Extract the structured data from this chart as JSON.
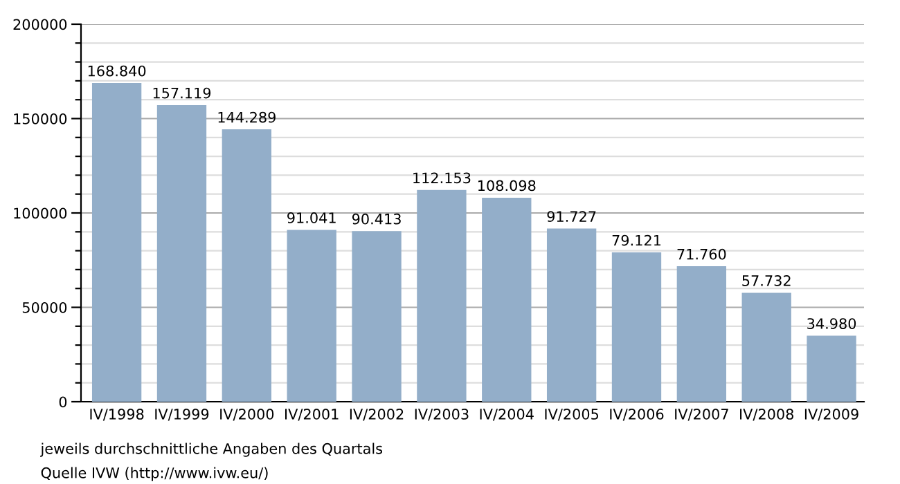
{
  "chart_data": {
    "type": "bar",
    "categories": [
      "IV/1998",
      "IV/1999",
      "IV/2000",
      "IV/2001",
      "IV/2002",
      "IV/2003",
      "IV/2004",
      "IV/2005",
      "IV/2006",
      "IV/2007",
      "IV/2008",
      "IV/2009"
    ],
    "values": [
      168840,
      157119,
      144289,
      91041,
      90413,
      112153,
      108098,
      91727,
      79121,
      71760,
      57732,
      34980
    ],
    "value_labels": [
      "168.840",
      "157.119",
      "144.289",
      "91.041",
      "90.413",
      "112.153",
      "108.098",
      "91.727",
      "79.121",
      "71.760",
      "57.732",
      "34.980"
    ],
    "color": "#93aec9",
    "ylim": [
      0,
      200000
    ],
    "yticks": [
      0,
      {
        "value": 10000,
        "label": null
      },
      {
        "value": 20000,
        "label": null
      },
      {
        "value": 30000,
        "label": null
      },
      {
        "value": 40000,
        "label": null
      },
      50000,
      {
        "value": 60000,
        "label": null
      },
      {
        "value": 70000,
        "label": null
      },
      {
        "value": 80000,
        "label": null
      },
      {
        "value": 90000,
        "label": null
      },
      100000,
      {
        "value": 110000,
        "label": null
      },
      {
        "value": 120000,
        "label": null
      },
      {
        "value": 130000,
        "label": null
      },
      {
        "value": 140000,
        "label": null
      },
      150000,
      {
        "value": 160000,
        "label": null
      },
      {
        "value": 170000,
        "label": null
      },
      {
        "value": 180000,
        "label": null
      },
      {
        "value": 190000,
        "label": null
      },
      200000
    ],
    "grid": "y",
    "annotations": [
      "jeweils durchschnittliche Angaben des Quartals",
      "Quelle IVW (http://www.ivw.eu/)"
    ]
  }
}
